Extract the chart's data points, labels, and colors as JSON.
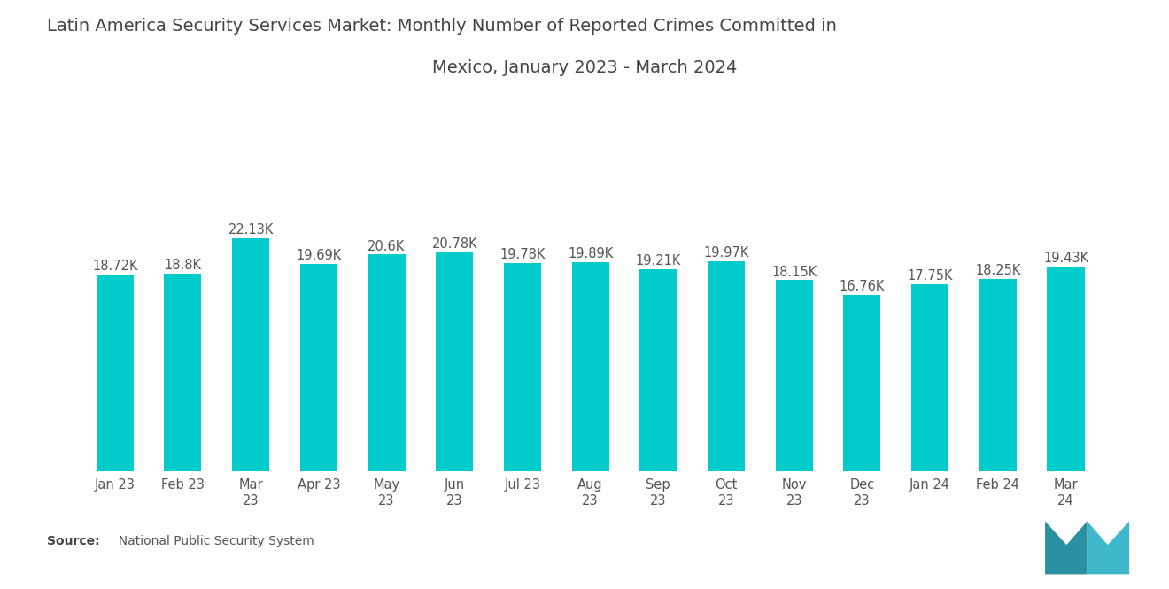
{
  "title_line1": "Latin America Security Services Market: Monthly Number of Reported Crimes Committed in",
  "title_line2": "Mexico, January 2023 - March 2024",
  "categories": [
    "Jan 23",
    "Feb 23",
    "Mar\n23",
    "Apr 23",
    "May\n23",
    "Jun\n23",
    "Jul 23",
    "Aug\n23",
    "Sep\n23",
    "Oct\n23",
    "Nov\n23",
    "Dec\n23",
    "Jan 24",
    "Feb 24",
    "Mar\n24"
  ],
  "values": [
    18720,
    18800,
    22130,
    19690,
    20600,
    20780,
    19780,
    19890,
    19210,
    19970,
    18150,
    16760,
    17750,
    18250,
    19430
  ],
  "labels": [
    "18.72K",
    "18.8K",
    "22.13K",
    "19.69K",
    "20.6K",
    "20.78K",
    "19.78K",
    "19.89K",
    "19.21K",
    "19.97K",
    "18.15K",
    "16.76K",
    "17.75K",
    "18.25K",
    "19.43K"
  ],
  "bar_color": "#00CCCC",
  "background_color": "#ffffff",
  "source_bold": "Source:",
  "source_normal": "  National Public Security System",
  "title_fontsize": 14,
  "label_fontsize": 10.5,
  "tick_fontsize": 10.5,
  "source_fontsize": 10,
  "ylim": [
    0,
    28000
  ]
}
